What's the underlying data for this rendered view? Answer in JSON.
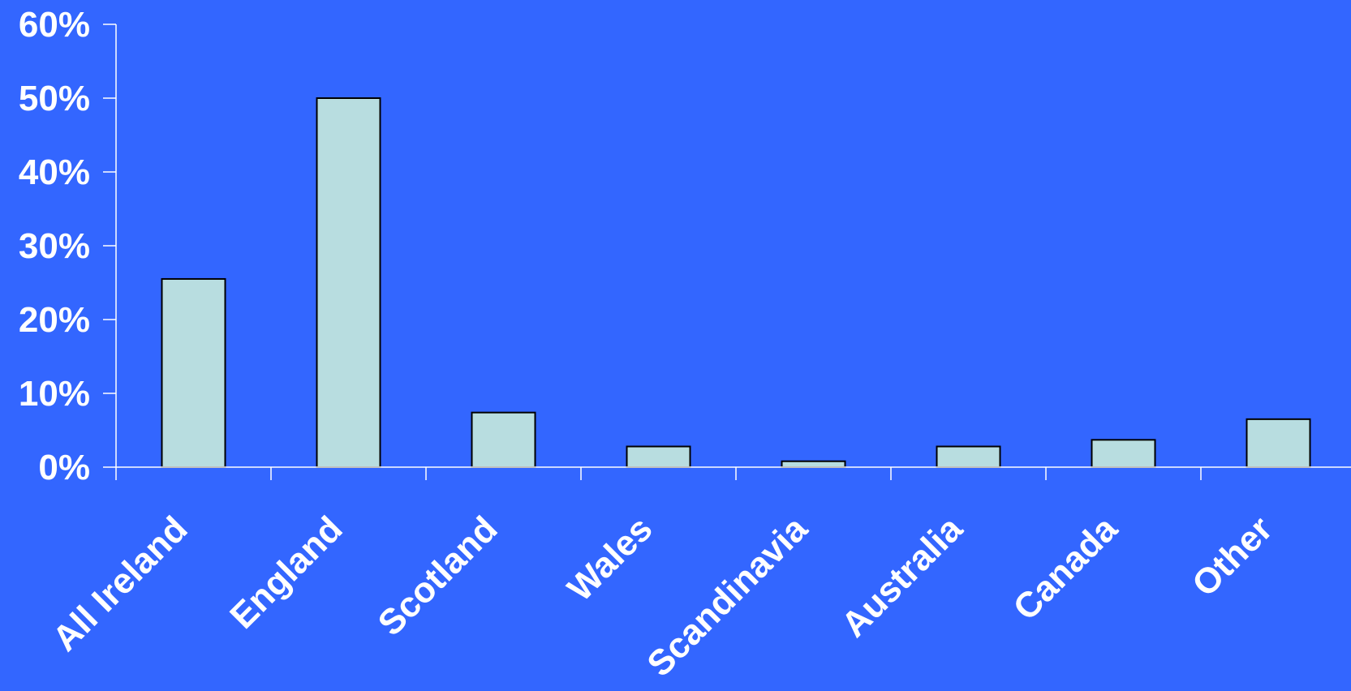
{
  "chart_data": {
    "type": "bar",
    "title": "",
    "xlabel": "",
    "ylabel": "",
    "categories": [
      "All Ireland",
      "England",
      "Scotland",
      "Wales",
      "Scandinavia",
      "Australia",
      "Canada",
      "Other"
    ],
    "values": [
      25.5,
      50,
      7.4,
      2.8,
      0.8,
      2.8,
      3.7,
      6.5
    ],
    "ylim": [
      0,
      60
    ],
    "yticks": [
      0,
      10,
      20,
      30,
      40,
      50,
      60
    ],
    "ytick_labels": [
      "0%",
      "10%",
      "20%",
      "30%",
      "40%",
      "50%",
      "60%"
    ],
    "grid": false,
    "legend": "none"
  },
  "colors": {
    "background": "#3366ff",
    "bar_fill": "#b8dde0",
    "bar_stroke": "#000000",
    "axis": "#ffffff",
    "text": "#ffffff"
  }
}
